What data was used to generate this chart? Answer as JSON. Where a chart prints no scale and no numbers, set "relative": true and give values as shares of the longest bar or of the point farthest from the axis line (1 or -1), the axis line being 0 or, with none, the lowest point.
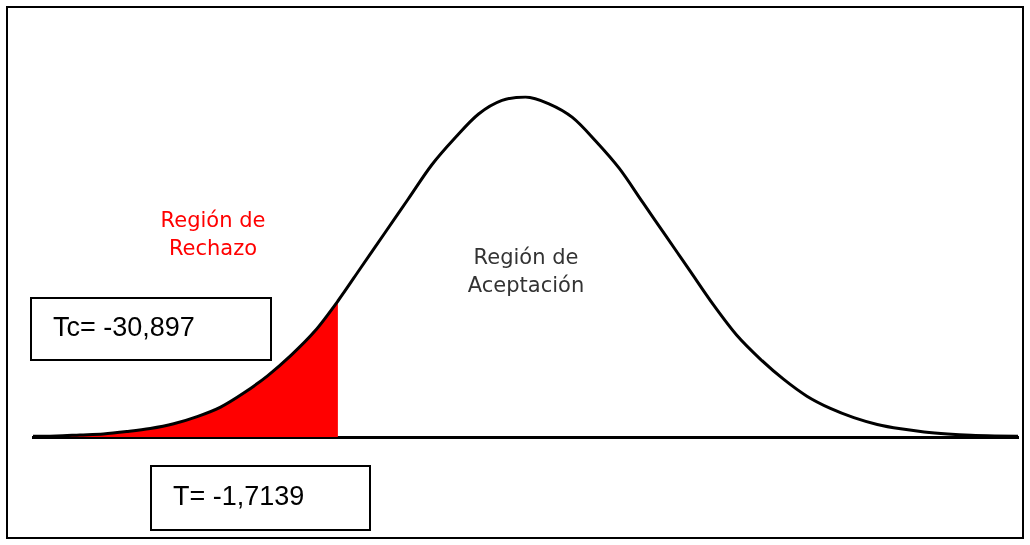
{
  "chart_data": {
    "type": "line",
    "relative": true,
    "categories": [
      null,
      null,
      null,
      null,
      null,
      null,
      null,
      null,
      null,
      null,
      null,
      null,
      null,
      null,
      null,
      null,
      null,
      null,
      null,
      null,
      null,
      null,
      null,
      null,
      null,
      null,
      null,
      null,
      null,
      null,
      null,
      null,
      null,
      null,
      null,
      null,
      null,
      null,
      null,
      null,
      null,
      null,
      null
    ],
    "series": [
      {
        "type": "area",
        "color": "#ff0000",
        "values": [
          0.002,
          0.003,
          0.006,
          0.009,
          0.016,
          0.025,
          0.039,
          0.06,
          0.088,
          0.13,
          0.18,
          0.24,
          0.31,
          0.4,
          null,
          null,
          null,
          null,
          null,
          null,
          null,
          null,
          null,
          null,
          null,
          null,
          null,
          null,
          null,
          null,
          null,
          null,
          null,
          null,
          null,
          null,
          null,
          null,
          null,
          null,
          null,
          null,
          null
        ]
      },
      {
        "color": "#000000",
        "values": [
          0.002,
          0.003,
          0.006,
          0.009,
          0.016,
          0.025,
          0.039,
          0.06,
          0.088,
          0.13,
          0.18,
          0.24,
          0.31,
          0.4,
          0.5,
          0.6,
          0.7,
          0.8,
          0.88,
          0.95,
          0.99,
          1,
          0.98,
          0.94,
          0.87,
          0.79,
          0.69,
          0.59,
          0.49,
          0.39,
          0.3,
          0.23,
          0.17,
          0.12,
          0.084,
          0.057,
          0.037,
          0.024,
          0.015,
          0.009,
          0.005,
          0.003,
          0.002
        ]
      }
    ],
    "annotations": [
      "Región de Rechazo",
      "Región de Aceptación",
      "Tc= -30,897",
      "T= -1,7139"
    ],
    "marker": "none",
    "grid": false,
    "legend": false
  }
}
